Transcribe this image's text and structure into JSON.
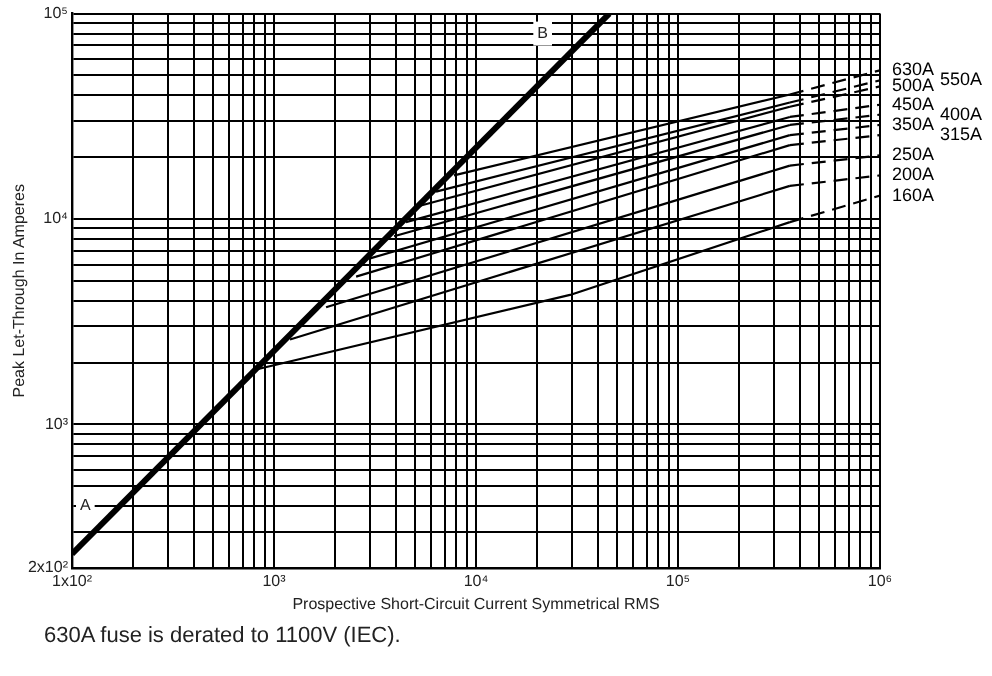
{
  "chart_data": {
    "type": "line",
    "xlabel": "Prospective Short-Circuit Current Symmetrical RMS",
    "ylabel": "Peak Let-Through In Amperes",
    "log": "xy",
    "grid": true,
    "legend": false,
    "marker": "none",
    "line_style": "solid",
    "xlim": [
      100,
      1000000
    ],
    "ylim": [
      200,
      100000
    ],
    "xticks": [
      {
        "value": 100,
        "label": "1x10²"
      },
      {
        "value": 200,
        "label": null
      },
      {
        "value": 300,
        "label": null
      },
      {
        "value": 400,
        "label": null
      },
      {
        "value": 500,
        "label": null
      },
      {
        "value": 600,
        "label": null
      },
      {
        "value": 700,
        "label": null
      },
      {
        "value": 800,
        "label": null
      },
      {
        "value": 900,
        "label": null
      },
      {
        "value": 1000,
        "label": "10³"
      },
      {
        "value": 2000,
        "label": null
      },
      {
        "value": 3000,
        "label": null
      },
      {
        "value": 4000,
        "label": null
      },
      {
        "value": 5000,
        "label": null
      },
      {
        "value": 6000,
        "label": null
      },
      {
        "value": 7000,
        "label": null
      },
      {
        "value": 8000,
        "label": null
      },
      {
        "value": 9000,
        "label": null
      },
      {
        "value": 10000,
        "label": "10⁴"
      },
      {
        "value": 20000,
        "label": null
      },
      {
        "value": 30000,
        "label": null
      },
      {
        "value": 40000,
        "label": null
      },
      {
        "value": 50000,
        "label": null
      },
      {
        "value": 60000,
        "label": null
      },
      {
        "value": 70000,
        "label": null
      },
      {
        "value": 80000,
        "label": null
      },
      {
        "value": 90000,
        "label": null
      },
      {
        "value": 100000,
        "label": "10⁵"
      },
      {
        "value": 200000,
        "label": null
      },
      {
        "value": 300000,
        "label": null
      },
      {
        "value": 400000,
        "label": null
      },
      {
        "value": 500000,
        "label": null
      },
      {
        "value": 600000,
        "label": null
      },
      {
        "value": 700000,
        "label": null
      },
      {
        "value": 800000,
        "label": null
      },
      {
        "value": 900000,
        "label": null
      },
      {
        "value": 1000000,
        "label": "10⁶"
      }
    ],
    "yticks": [
      {
        "value": 200,
        "label": "2x10²"
      },
      {
        "value": 300,
        "label": null
      },
      {
        "value": 400,
        "label": null
      },
      {
        "value": 500,
        "label": null
      },
      {
        "value": 600,
        "label": null
      },
      {
        "value": 700,
        "label": null
      },
      {
        "value": 800,
        "label": null
      },
      {
        "value": 900,
        "label": null
      },
      {
        "value": 1000,
        "label": "10³"
      },
      {
        "value": 2000,
        "label": null
      },
      {
        "value": 3000,
        "label": null
      },
      {
        "value": 4000,
        "label": null
      },
      {
        "value": 5000,
        "label": null
      },
      {
        "value": 6000,
        "label": null
      },
      {
        "value": 7000,
        "label": null
      },
      {
        "value": 8000,
        "label": null
      },
      {
        "value": 9000,
        "label": null
      },
      {
        "value": 10000,
        "label": "10⁴"
      },
      {
        "value": 20000,
        "label": null
      },
      {
        "value": 30000,
        "label": null
      },
      {
        "value": 40000,
        "label": null
      },
      {
        "value": 50000,
        "label": null
      },
      {
        "value": 60000,
        "label": null
      },
      {
        "value": 70000,
        "label": null
      },
      {
        "value": 80000,
        "label": null
      },
      {
        "value": 90000,
        "label": null
      },
      {
        "value": 100000,
        "label": "10⁵"
      }
    ],
    "series": [
      {
        "color": "#000000",
        "x": [
          100,
          45700
        ],
        "values": [
          234,
          100000
        ]
      },
      {
        "name": "630A",
        "color": "#000000",
        "x": [
          7780,
          358000
        ],
        "values": [
          16300,
          40400
        ]
      },
      {
        "name": "550A",
        "color": "#000000",
        "x": [
          6340,
          358000
        ],
        "values": [
          13600,
          36900
        ]
      },
      {
        "name": "500A",
        "color": "#000000",
        "x": [
          5280,
          358000
        ],
        "values": [
          11600,
          35200
        ]
      },
      {
        "name": "450A",
        "color": "#000000",
        "x": [
          4500,
          358000
        ],
        "values": [
          9660,
          31400
        ]
      },
      {
        "name": "400A",
        "color": "#000000",
        "x": [
          3930,
          358000
        ],
        "values": [
          8240,
          28700
        ]
      },
      {
        "name": "350A",
        "color": "#000000",
        "x": [
          2990,
          358000
        ],
        "values": [
          6430,
          25600
        ]
      },
      {
        "name": "315A",
        "color": "#000000",
        "x": [
          2550,
          358000
        ],
        "values": [
          5240,
          22900
        ]
      },
      {
        "name": "250A",
        "color": "#000000",
        "x": [
          1810,
          358000
        ],
        "values": [
          3720,
          18200
        ]
      },
      {
        "name": "200A",
        "color": "#000000",
        "x": [
          1200,
          358000
        ],
        "values": [
          2590,
          14500
        ]
      },
      {
        "name": "160A",
        "color": "#000000",
        "x": [
          815,
          29200,
          358000
        ],
        "values": [
          1850,
          4270,
          9660
        ]
      },
      {
        "color": "#000000",
        "line_style": "dashed",
        "x": [
          358000,
          1000000
        ],
        "values": [
          40400,
          53000
        ]
      },
      {
        "color": "#000000",
        "line_style": "dashed",
        "x": [
          358000,
          1000000
        ],
        "values": [
          36900,
          47300
        ]
      },
      {
        "color": "#000000",
        "line_style": "dashed",
        "x": [
          358000,
          1000000
        ],
        "values": [
          35200,
          44200
        ]
      },
      {
        "color": "#000000",
        "line_style": "dashed",
        "x": [
          358000,
          1000000
        ],
        "values": [
          31400,
          36000
        ]
      },
      {
        "color": "#000000",
        "line_style": "dashed",
        "x": [
          358000,
          1000000
        ],
        "values": [
          28700,
          32200
        ]
      },
      {
        "color": "#000000",
        "line_style": "dashed",
        "x": [
          358000,
          1000000
        ],
        "values": [
          25600,
          28700
        ]
      },
      {
        "color": "#000000",
        "line_style": "dashed",
        "x": [
          358000,
          1000000
        ],
        "values": [
          22900,
          25600
        ]
      },
      {
        "color": "#000000",
        "line_style": "dashed",
        "x": [
          358000,
          1000000
        ],
        "values": [
          18200,
          20400
        ]
      },
      {
        "color": "#000000",
        "line_style": "dashed",
        "x": [
          358000,
          1000000
        ],
        "values": [
          14500,
          16300
        ]
      },
      {
        "color": "#000000",
        "line_style": "dashed",
        "x": [
          358000,
          1000000
        ],
        "values": [
          9660,
          13000
        ]
      }
    ],
    "annotations": [
      "A",
      "B",
      "630A fuse is derated to 1100V (IEC)."
    ]
  }
}
